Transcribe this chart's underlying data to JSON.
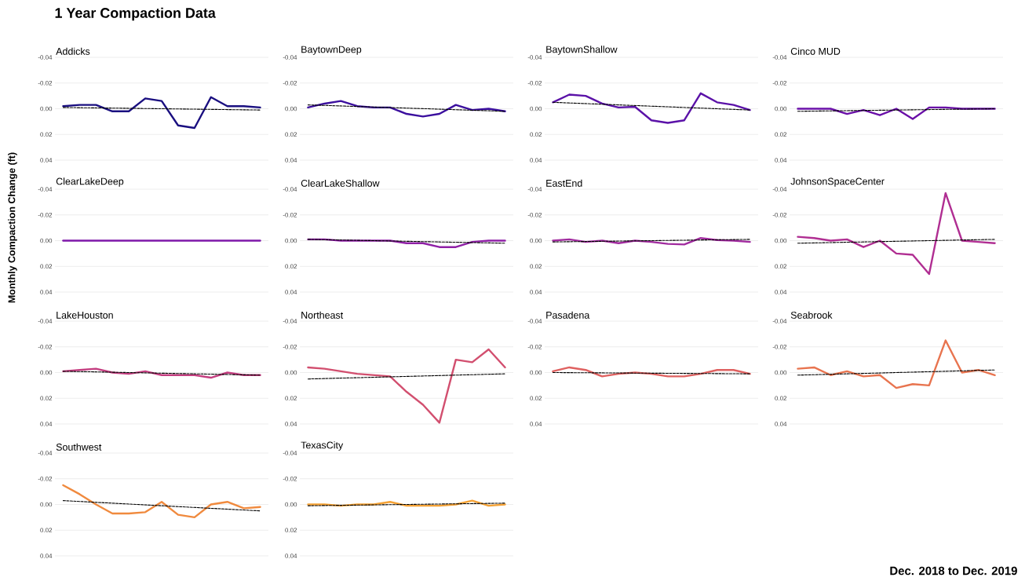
{
  "chart_data": [
    {
      "type": "other",
      "title": "1 Year Compaction Data",
      "ylabel": "Monthly Compaction Change (ft)",
      "annotations": [
        "Dec. 2018 to Dec. 2019"
      ]
    },
    {
      "type": "line",
      "title": "Addicks",
      "categories": [
        null,
        null,
        null,
        null,
        null,
        null,
        null,
        null,
        null,
        null,
        null,
        null,
        null
      ],
      "ylim": [
        0.04,
        -0.04
      ],
      "yticks": [
        {
          "value": -0.04,
          "label": "-0.04"
        },
        {
          "value": -0.02,
          "label": "-0.02"
        },
        {
          "value": 0,
          "label": "0.00"
        },
        {
          "value": 0.02,
          "label": "0.02"
        },
        {
          "value": 0.04,
          "label": "0.04"
        }
      ],
      "grid": "y",
      "tick_labels": "y",
      "series": [
        {
          "color": "#1a0f80",
          "values": [
            -0.002,
            -0.003,
            -0.003,
            0.002,
            0.002,
            -0.008,
            -0.006,
            0.013,
            0.015,
            -0.009,
            -0.002,
            -0.002,
            -0.001
          ]
        },
        {
          "type": "line",
          "values": [
            -0.001,
            null,
            null,
            null,
            null,
            null,
            null,
            null,
            null,
            null,
            null,
            null,
            0.001
          ],
          "color": "#000000",
          "line_style": "dashed"
        }
      ]
    },
    {
      "type": "line",
      "title": "BaytownDeep",
      "categories": [
        null,
        null,
        null,
        null,
        null,
        null,
        null,
        null,
        null,
        null,
        null,
        null,
        null
      ],
      "ylim": [
        0.04,
        -0.04
      ],
      "yticks": [
        {
          "value": -0.04,
          "label": "-0.04"
        },
        {
          "value": -0.02,
          "label": "-0.02"
        },
        {
          "value": 0,
          "label": "0.00"
        },
        {
          "value": 0.02,
          "label": "0.02"
        },
        {
          "value": 0.04,
          "label": "0.04"
        }
      ],
      "grid": "y",
      "tick_labels": "y",
      "series": [
        {
          "color": "#3b0f9e",
          "values": [
            -0.001,
            -0.004,
            -0.006,
            -0.002,
            -0.001,
            -0.001,
            0.004,
            0.006,
            0.004,
            -0.003,
            0.001,
            0.0,
            0.002
          ]
        },
        {
          "type": "line",
          "values": [
            -0.003,
            null,
            null,
            null,
            null,
            null,
            null,
            null,
            null,
            null,
            null,
            null,
            0.002
          ],
          "color": "#000000",
          "line_style": "dashed"
        }
      ]
    },
    {
      "type": "line",
      "title": "BaytownShallow",
      "categories": [
        null,
        null,
        null,
        null,
        null,
        null,
        null,
        null,
        null,
        null,
        null,
        null,
        null
      ],
      "ylim": [
        0.04,
        -0.04
      ],
      "yticks": [
        {
          "value": -0.04,
          "label": "-0.04"
        },
        {
          "value": -0.02,
          "label": "-0.02"
        },
        {
          "value": 0,
          "label": "0.00"
        },
        {
          "value": 0.02,
          "label": "0.02"
        },
        {
          "value": 0.04,
          "label": "0.04"
        }
      ],
      "grid": "y",
      "tick_labels": "y",
      "series": [
        {
          "color": "#5b12a8",
          "values": [
            -0.005,
            -0.011,
            -0.01,
            -0.004,
            -0.001,
            -0.0015,
            0.009,
            0.011,
            0.009,
            -0.012,
            -0.005,
            -0.003,
            0.001
          ]
        },
        {
          "type": "line",
          "values": [
            -0.005,
            null,
            null,
            null,
            null,
            null,
            null,
            null,
            null,
            null,
            null,
            null,
            0.001
          ],
          "color": "#000000",
          "line_style": "dashed"
        }
      ]
    },
    {
      "type": "line",
      "title": "Cinco MUD",
      "categories": [
        null,
        null,
        null,
        null,
        null,
        null,
        null,
        null,
        null,
        null,
        null,
        null,
        null
      ],
      "ylim": [
        0.04,
        -0.04
      ],
      "yticks": [
        {
          "value": -0.04,
          "label": "-0.04"
        },
        {
          "value": -0.02,
          "label": "-0.02"
        },
        {
          "value": 0,
          "label": "0.00"
        },
        {
          "value": 0.02,
          "label": "0.02"
        },
        {
          "value": 0.04,
          "label": "0.04"
        }
      ],
      "grid": "y",
      "tick_labels": "y",
      "series": [
        {
          "color": "#6a0fa8",
          "values": [
            0.0,
            0.0,
            0.0,
            0.004,
            0.001,
            0.005,
            0.0,
            0.008,
            -0.001,
            -0.001,
            0.0,
            0.0,
            0.0
          ]
        },
        {
          "type": "line",
          "values": [
            0.002,
            null,
            null,
            null,
            null,
            null,
            null,
            null,
            null,
            null,
            null,
            null,
            0.0
          ],
          "color": "#000000",
          "line_style": "dashed"
        }
      ]
    },
    {
      "type": "line",
      "title": "ClearLakeDeep",
      "categories": [
        null,
        null,
        null,
        null,
        null,
        null,
        null,
        null,
        null,
        null,
        null,
        null,
        null
      ],
      "ylim": [
        0.04,
        -0.04
      ],
      "yticks": [
        {
          "value": -0.04,
          "label": "-0.04"
        },
        {
          "value": -0.02,
          "label": "-0.02"
        },
        {
          "value": 0,
          "label": "0.00"
        },
        {
          "value": 0.02,
          "label": "0.02"
        },
        {
          "value": 0.04,
          "label": "0.04"
        }
      ],
      "grid": "y",
      "tick_labels": "y",
      "series": [
        {
          "color": "#7e18a9",
          "values": [
            0.0,
            0.0,
            0.0,
            0.0,
            0.0,
            0.0,
            0.0,
            0.0,
            0.0,
            0.0,
            0.0,
            0.0,
            0.0
          ]
        }
      ]
    },
    {
      "type": "line",
      "title": "ClearLakeShallow",
      "categories": [
        null,
        null,
        null,
        null,
        null,
        null,
        null,
        null,
        null,
        null,
        null,
        null,
        null
      ],
      "ylim": [
        0.04,
        -0.04
      ],
      "yticks": [
        {
          "value": -0.04,
          "label": "-0.04"
        },
        {
          "value": -0.02,
          "label": "-0.02"
        },
        {
          "value": 0,
          "label": "0.00"
        },
        {
          "value": 0.02,
          "label": "0.02"
        },
        {
          "value": 0.04,
          "label": "0.04"
        }
      ],
      "grid": "y",
      "tick_labels": "y",
      "series": [
        {
          "color": "#8f1fa6",
          "values": [
            -0.001,
            -0.001,
            0.0,
            0.0,
            0.0,
            0.0,
            0.002,
            0.002,
            0.005,
            0.005,
            0.001,
            0.0,
            0.0
          ]
        },
        {
          "type": "line",
          "values": [
            -0.001,
            null,
            null,
            null,
            null,
            null,
            null,
            null,
            null,
            null,
            null,
            null,
            0.002
          ],
          "color": "#000000",
          "line_style": "dashed"
        }
      ]
    },
    {
      "type": "line",
      "title": "EastEnd",
      "categories": [
        null,
        null,
        null,
        null,
        null,
        null,
        null,
        null,
        null,
        null,
        null,
        null,
        null
      ],
      "ylim": [
        0.04,
        -0.04
      ],
      "yticks": [
        {
          "value": -0.04,
          "label": "-0.04"
        },
        {
          "value": -0.02,
          "label": "-0.02"
        },
        {
          "value": 0,
          "label": "0.00"
        },
        {
          "value": 0.02,
          "label": "0.02"
        },
        {
          "value": 0.04,
          "label": "0.04"
        }
      ],
      "grid": "y",
      "tick_labels": "y",
      "series": [
        {
          "color": "#a12b9f",
          "values": [
            0.0,
            -0.001,
            0.001,
            0.0,
            0.002,
            0.0,
            0.001,
            0.0025,
            0.003,
            -0.002,
            -0.0005,
            0.0,
            0.001
          ]
        },
        {
          "type": "line",
          "values": [
            0.001,
            null,
            null,
            null,
            null,
            null,
            null,
            null,
            null,
            null,
            null,
            null,
            -0.001
          ],
          "color": "#000000",
          "line_style": "dashed"
        }
      ]
    },
    {
      "type": "line",
      "title": "JohnsonSpaceCenter",
      "categories": [
        null,
        null,
        null,
        null,
        null,
        null,
        null,
        null,
        null,
        null,
        null,
        null,
        null
      ],
      "ylim": [
        0.04,
        -0.04
      ],
      "yticks": [
        {
          "value": -0.04,
          "label": "-0.04"
        },
        {
          "value": -0.02,
          "label": "-0.02"
        },
        {
          "value": 0,
          "label": "0.00"
        },
        {
          "value": 0.02,
          "label": "0.02"
        },
        {
          "value": 0.04,
          "label": "0.04"
        }
      ],
      "grid": "y",
      "tick_labels": "y",
      "series": [
        {
          "color": "#b02e92",
          "values": [
            -0.003,
            -0.002,
            0.0,
            -0.001,
            0.005,
            0.0,
            0.01,
            0.011,
            0.026,
            -0.037,
            0.0,
            0.001,
            0.002
          ]
        },
        {
          "type": "line",
          "values": [
            0.002,
            null,
            null,
            null,
            null,
            null,
            null,
            null,
            null,
            null,
            null,
            null,
            -0.001
          ],
          "color": "#000000",
          "line_style": "dashed"
        }
      ]
    },
    {
      "type": "line",
      "title": "LakeHouston",
      "categories": [
        null,
        null,
        null,
        null,
        null,
        null,
        null,
        null,
        null,
        null,
        null,
        null,
        null
      ],
      "ylim": [
        0.04,
        -0.04
      ],
      "yticks": [
        {
          "value": -0.04,
          "label": "-0.04"
        },
        {
          "value": -0.02,
          "label": "-0.02"
        },
        {
          "value": 0,
          "label": "0.00"
        },
        {
          "value": 0.02,
          "label": "0.02"
        },
        {
          "value": 0.04,
          "label": "0.04"
        }
      ],
      "grid": "y",
      "tick_labels": "y",
      "series": [
        {
          "color": "#c43e80",
          "values": [
            -0.001,
            -0.002,
            -0.003,
            0.0,
            0.001,
            -0.001,
            0.002,
            0.002,
            0.002,
            0.004,
            0.0,
            0.002,
            0.002
          ]
        },
        {
          "type": "line",
          "values": [
            -0.001,
            null,
            null,
            null,
            null,
            null,
            null,
            null,
            null,
            null,
            null,
            null,
            0.002
          ],
          "color": "#000000",
          "line_style": "dashed"
        }
      ]
    },
    {
      "type": "line",
      "title": "Northeast",
      "categories": [
        null,
        null,
        null,
        null,
        null,
        null,
        null,
        null,
        null,
        null,
        null,
        null,
        null
      ],
      "ylim": [
        0.04,
        -0.04
      ],
      "yticks": [
        {
          "value": -0.04,
          "label": "-0.04"
        },
        {
          "value": -0.02,
          "label": "-0.02"
        },
        {
          "value": 0,
          "label": "0.00"
        },
        {
          "value": 0.02,
          "label": "0.02"
        },
        {
          "value": 0.04,
          "label": "0.04"
        }
      ],
      "grid": "y",
      "tick_labels": "y",
      "series": [
        {
          "color": "#d24f6f",
          "values": [
            -0.004,
            -0.003,
            -0.001,
            0.001,
            0.002,
            0.003,
            0.015,
            0.025,
            0.039,
            -0.01,
            -0.008,
            -0.018,
            -0.004
          ]
        },
        {
          "type": "line",
          "values": [
            0.005,
            null,
            null,
            null,
            null,
            null,
            null,
            null,
            null,
            null,
            null,
            null,
            0.001
          ],
          "color": "#000000",
          "line_style": "dashed"
        }
      ]
    },
    {
      "type": "line",
      "title": "Pasadena",
      "categories": [
        null,
        null,
        null,
        null,
        null,
        null,
        null,
        null,
        null,
        null,
        null,
        null,
        null
      ],
      "ylim": [
        0.04,
        -0.04
      ],
      "yticks": [
        {
          "value": -0.04,
          "label": "-0.04"
        },
        {
          "value": -0.02,
          "label": "-0.02"
        },
        {
          "value": 0,
          "label": "0.00"
        },
        {
          "value": 0.02,
          "label": "0.02"
        },
        {
          "value": 0.04,
          "label": "0.04"
        }
      ],
      "grid": "y",
      "tick_labels": "y",
      "series": [
        {
          "color": "#df6160",
          "values": [
            -0.001,
            -0.004,
            -0.002,
            0.003,
            0.001,
            0.0,
            0.001,
            0.003,
            0.003,
            0.001,
            -0.002,
            -0.002,
            0.001
          ]
        },
        {
          "type": "line",
          "values": [
            0.0,
            null,
            null,
            null,
            null,
            null,
            null,
            null,
            null,
            null,
            null,
            null,
            0.001
          ],
          "color": "#000000",
          "line_style": "dashed"
        }
      ]
    },
    {
      "type": "line",
      "title": "Seabrook",
      "categories": [
        null,
        null,
        null,
        null,
        null,
        null,
        null,
        null,
        null,
        null,
        null,
        null,
        null
      ],
      "ylim": [
        0.04,
        -0.04
      ],
      "yticks": [
        {
          "value": -0.04,
          "label": "-0.04"
        },
        {
          "value": -0.02,
          "label": "-0.02"
        },
        {
          "value": 0,
          "label": "0.00"
        },
        {
          "value": 0.02,
          "label": "0.02"
        },
        {
          "value": 0.04,
          "label": "0.04"
        }
      ],
      "grid": "y",
      "tick_labels": "y",
      "series": [
        {
          "color": "#e8744f",
          "values": [
            -0.003,
            -0.004,
            0.002,
            -0.001,
            0.003,
            0.002,
            0.012,
            0.009,
            0.01,
            -0.025,
            0.0,
            -0.002,
            0.002
          ]
        },
        {
          "type": "line",
          "values": [
            0.002,
            null,
            null,
            null,
            null,
            null,
            null,
            null,
            null,
            null,
            null,
            null,
            -0.002
          ],
          "color": "#000000",
          "line_style": "dashed"
        }
      ]
    },
    {
      "type": "line",
      "title": "Southwest",
      "categories": [
        null,
        null,
        null,
        null,
        null,
        null,
        null,
        null,
        null,
        null,
        null,
        null,
        null
      ],
      "ylim": [
        0.04,
        -0.04
      ],
      "yticks": [
        {
          "value": -0.04,
          "label": "-0.04"
        },
        {
          "value": -0.02,
          "label": "-0.02"
        },
        {
          "value": 0,
          "label": "0.00"
        },
        {
          "value": 0.02,
          "label": "0.02"
        },
        {
          "value": 0.04,
          "label": "0.04"
        }
      ],
      "grid": "y",
      "tick_labels": "y",
      "series": [
        {
          "color": "#f08a3e",
          "values": [
            -0.015,
            -0.008,
            0.0,
            0.007,
            0.007,
            0.006,
            -0.002,
            0.008,
            0.01,
            0.0,
            -0.002,
            0.003,
            0.002
          ]
        },
        {
          "type": "line",
          "values": [
            -0.003,
            null,
            null,
            null,
            null,
            null,
            null,
            null,
            null,
            null,
            null,
            null,
            0.005
          ],
          "color": "#000000",
          "line_style": "dashed"
        }
      ]
    },
    {
      "type": "line",
      "title": "TexasCity",
      "categories": [
        null,
        null,
        null,
        null,
        null,
        null,
        null,
        null,
        null,
        null,
        null,
        null,
        null
      ],
      "ylim": [
        0.04,
        -0.04
      ],
      "yticks": [
        {
          "value": -0.04,
          "label": "-0.04"
        },
        {
          "value": -0.02,
          "label": "-0.02"
        },
        {
          "value": 0,
          "label": "0.00"
        },
        {
          "value": 0.02,
          "label": "0.02"
        },
        {
          "value": 0.04,
          "label": "0.04"
        }
      ],
      "grid": "y",
      "tick_labels": "y",
      "series": [
        {
          "color": "#f5a235",
          "values": [
            0.0,
            0.0,
            0.001,
            0.0,
            0.0,
            -0.002,
            0.001,
            0.001,
            0.001,
            0.0,
            -0.003,
            0.001,
            0.0
          ]
        },
        {
          "type": "line",
          "values": [
            0.001,
            null,
            null,
            null,
            null,
            null,
            null,
            null,
            null,
            null,
            null,
            null,
            -0.001
          ],
          "color": "#000000",
          "line_style": "dashed"
        }
      ]
    }
  ]
}
